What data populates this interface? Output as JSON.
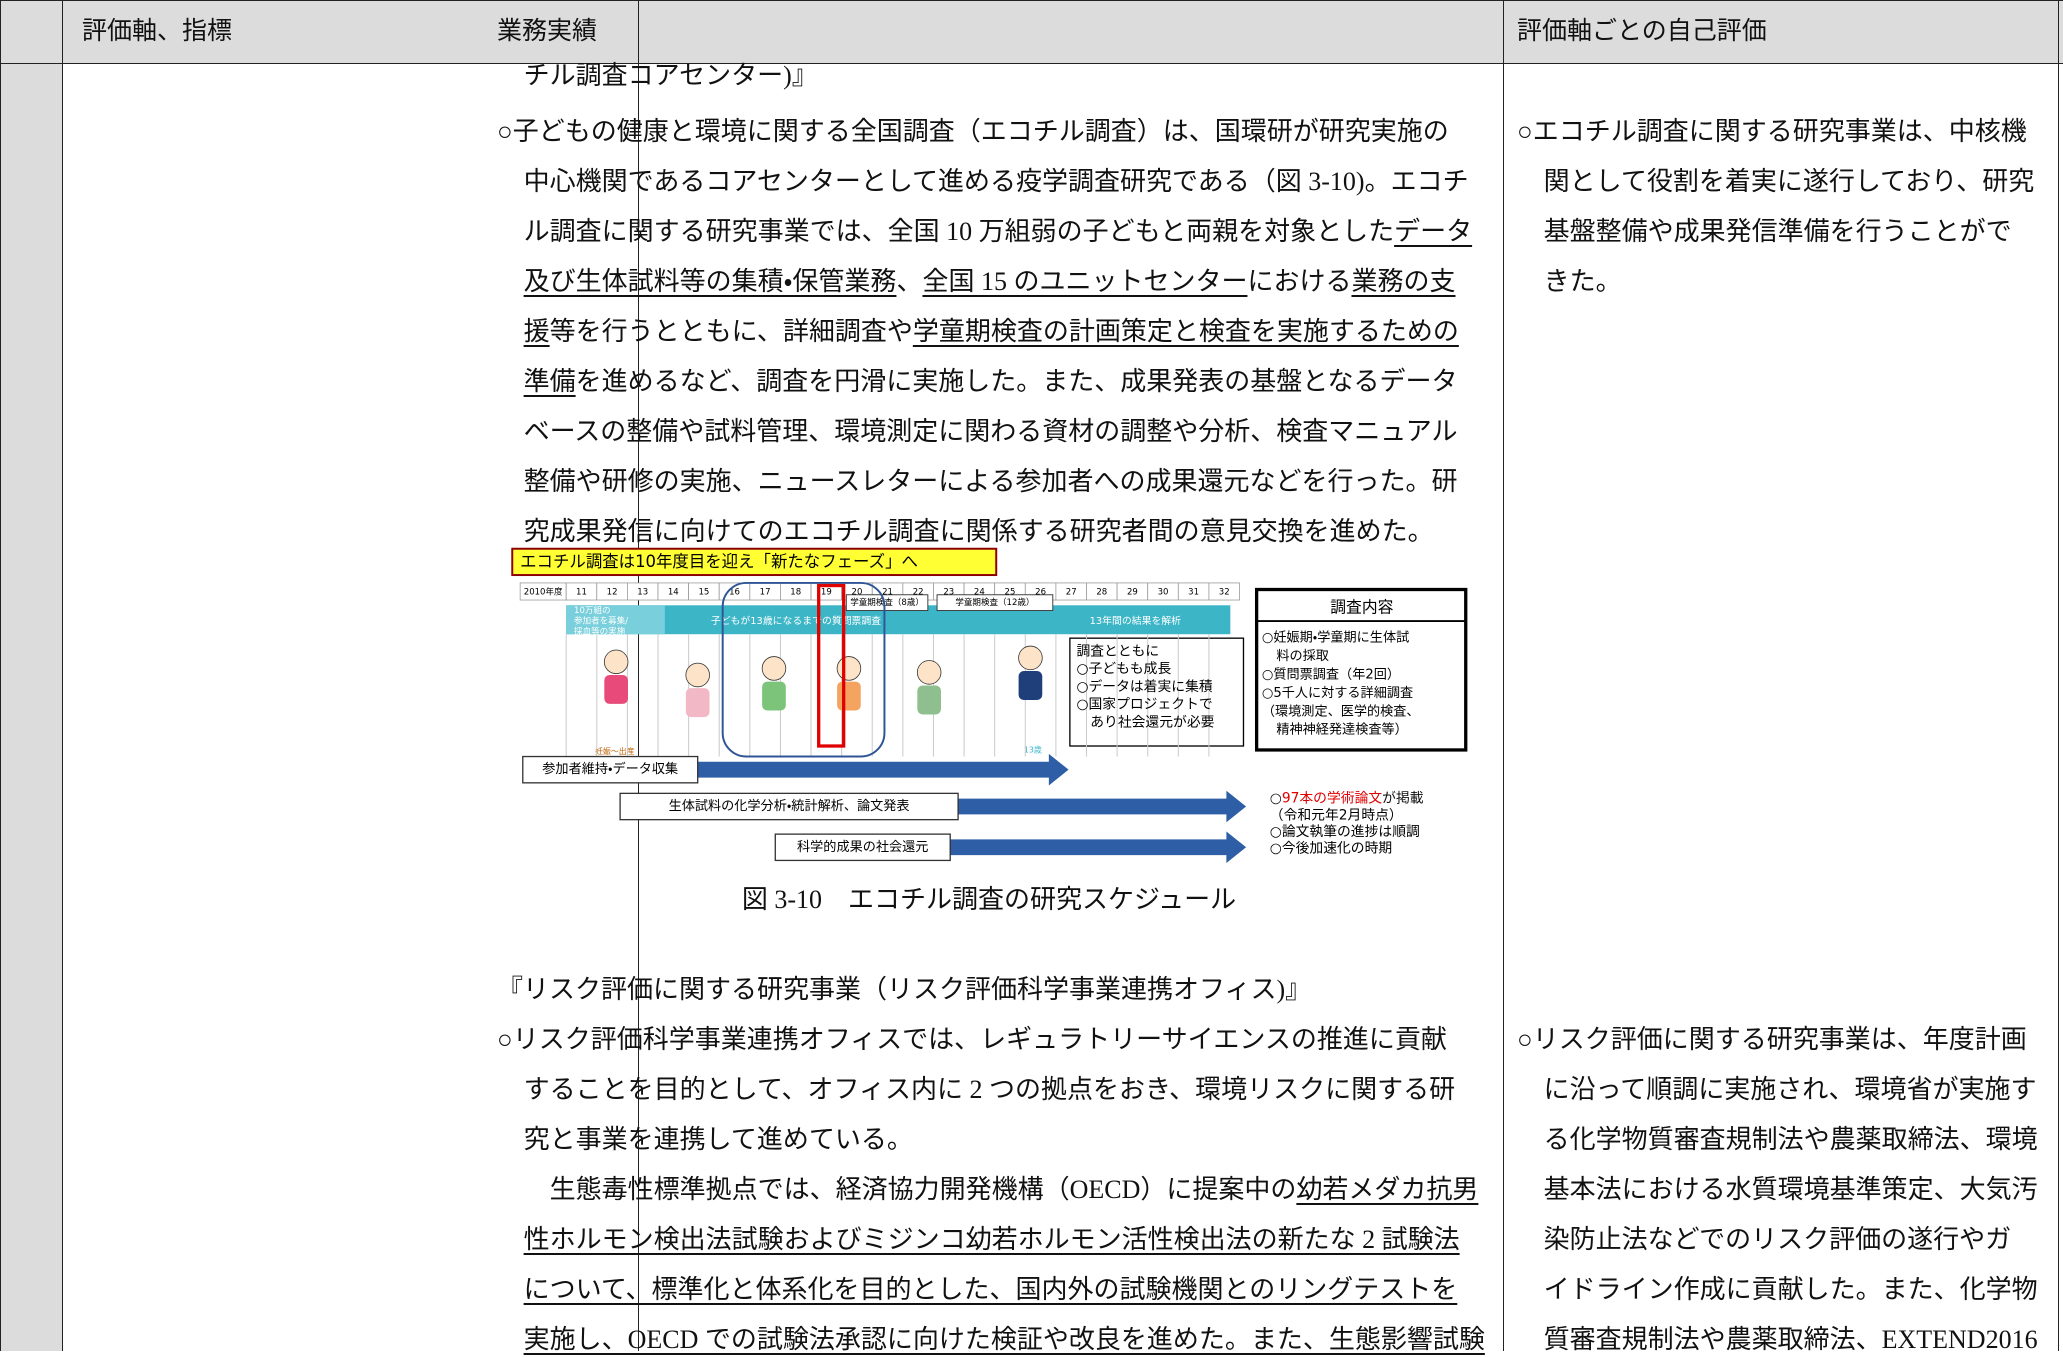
{
  "header": {
    "indicator": "評価軸、指標",
    "results": "業務実績",
    "self_evaluation": "評価軸ごとの自己評価"
  },
  "results": {
    "lines_top": [
      {
        "runs": [
          "チル調査コアセンター)』"
        ]
      },
      {
        "runs": [
          "○子どもの健康と環境に関する全国調査（エコチル調査）は、国環研が研究実施の"
        ]
      },
      {
        "runs": [
          "中心機関であるコアセンターとして進める疫学調査研究である（図 3-10)。エコチ"
        ]
      },
      {
        "runs": [
          "ル調査に関する研究事業では、全国 10 万組弱の子どもと両親を対象とした",
          {
            "text": "データ",
            "underline": true
          }
        ]
      },
      {
        "runs": [
          {
            "text": "及び生体試料等の集積・保管業務",
            "underline": true
          },
          "、",
          {
            "text": "全国 15 のユニットセンター",
            "underline": true
          },
          "における",
          {
            "text": "業務の支",
            "underline": true
          }
        ]
      },
      {
        "runs": [
          {
            "text": "援",
            "underline": true
          },
          "等を行うとともに、詳細調査や",
          {
            "text": "学童期検査の計画策定と検査を実施するための",
            "underline": true
          }
        ]
      },
      {
        "runs": [
          {
            "text": "準備",
            "underline": true
          },
          "を進めるなど、調査を円滑に実施した。また、成果発表の基盤となるデータ"
        ]
      },
      {
        "runs": [
          "ベースの整備や試料管理、環境測定に関わる資材の調整や分析、検査マニュアル"
        ]
      },
      {
        "runs": [
          "整備や研修の実施、ニュースレターによる参加者への成果還元などを行った。研"
        ]
      },
      {
        "runs": [
          "究成果発信に向けてのエコチル調査に関係する研究者間の意見交換を進めた。"
        ]
      }
    ],
    "figure": {
      "banner": "エコチル調査は10年度目を迎え「新たなフェーズ」へ",
      "years": [
        "2010年度",
        "11",
        "12",
        "13",
        "14",
        "15",
        "16",
        "17",
        "18",
        "19",
        "20",
        "21",
        "22",
        "23",
        "24",
        "25",
        "26",
        "27",
        "28",
        "29",
        "30",
        "31",
        "32"
      ],
      "checkup_8": "学童期検査（8歳）",
      "checkup_12": "学童期検査（12歳）",
      "recruit": [
        "10万組の",
        "参加者を募集/",
        "採血等の実施"
      ],
      "questionnaire": "子どもが13歳になるまでの質問票調査",
      "analysis": "13年間の結果を解析",
      "pregnancy": "妊娠～出産",
      "age13": "13歳",
      "note": [
        "調査とともに",
        "○子どもも成長",
        "○データは着実に集積",
        "○国家プロジェクトで",
        "　あり社会還元が必要"
      ],
      "survey_title": "調査内容",
      "survey_items": [
        "○妊娠期・学童期に生体試",
        "料の採取",
        "○質問票調査（年2回）",
        "○5千人に対する詳細調査",
        "（環境測定、医学的検査、",
        "精神神経発達検査等）"
      ],
      "arrows": [
        "参加者維持・データ収集",
        "生体試料の化学分析・統計解析、論文発表",
        "科学的成果の社会還元"
      ],
      "outcomes": [
        [
          "○",
          "97本の学術論文",
          "が掲載"
        ],
        "（令和元年2月時点）",
        "○論文執筆の進捗は順調",
        "○今後加速化の時期"
      ],
      "caption": "図 3-10　エコチル調査の研究スケジュール"
    },
    "lines_bottom": [
      {
        "runs": [
          "『リスク評価に関する研究事業（リスク評価科学事業連携オフィス)』"
        ]
      },
      {
        "runs": [
          "○リスク評価科学事業連携オフィスでは、レギュラトリーサイエンスの推進に貢献"
        ]
      },
      {
        "runs": [
          "することを目的として、オフィス内に 2 つの拠点をおき、環境リスクに関する研"
        ]
      },
      {
        "runs": [
          "究と事業を連携して進めている。"
        ]
      },
      {
        "runs": [
          "　生態毒性標準拠点では、経済協力開発機構（OECD）に提案中の",
          {
            "text": "幼若メダカ抗男",
            "underline": true
          }
        ]
      },
      {
        "runs": [
          {
            "text": "性ホルモン検出法試験およびミジンコ幼若ホルモン活性検出法の新たな 2 試験法",
            "underline": true
          }
        ]
      },
      {
        "runs": [
          {
            "text": "について、標準化と体系化を目的とした、国内外の試験機関とのリングテストを",
            "underline": true
          }
        ]
      },
      {
        "runs": [
          {
            "text": "実施し、OECD での試験法承認に向けた検証や改良を進めた。また、生態影響試験",
            "underline": true
          }
        ]
      }
    ]
  },
  "self_evaluation": {
    "lines_top": [
      "○エコチル調査に関する研究事業は、中核機",
      "関として役割を着実に遂行しており、研究",
      "基盤整備や成果発信準備を行うことがで",
      "きた。"
    ],
    "lines_bottom": [
      "○リスク評価に関する研究事業は、年度計画",
      "に沿って順調に実施され、環境省が実施す",
      "る化学物質審査規制法や農薬取締法、環境",
      "基本法における水質環境基準策定、大気汚",
      "染防止法などでのリスク評価の遂行やガ",
      "イドライン作成に貢献した。また、化学物",
      "質審査規制法や農薬取締法、EXTEND2016"
    ]
  }
}
